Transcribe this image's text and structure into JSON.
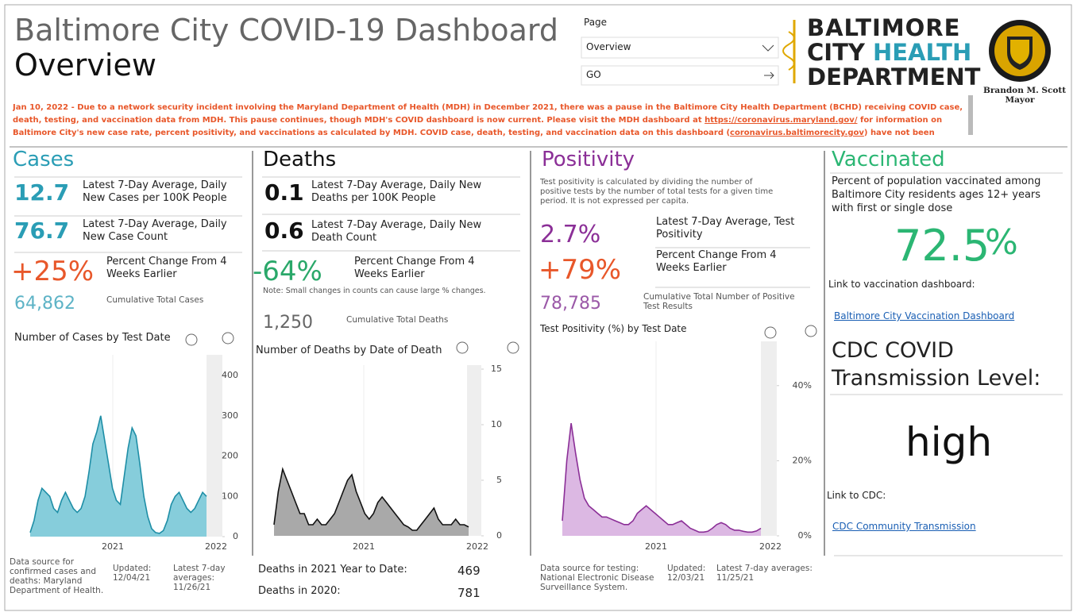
{
  "header": {
    "title": "Baltimore City COVID-19 Dashboard",
    "subtitle": "Overview",
    "page_label": "Page",
    "page_value": "Overview",
    "go": "GO",
    "logo": {
      "line1": "BALTIMORE",
      "line2a": "CITY",
      "line2b": "HEALTH",
      "line3": "DEPARTMENT"
    },
    "mayor": {
      "name": "Brandon M. Scott",
      "role": "Mayor"
    }
  },
  "notice": {
    "text1": "Jan 10, 2022 - Due to a network security incident involving the Maryland Department of Health (MDH) in December 2021, there was a pause in the Baltimore City Health Department (BCHD) receiving COVID case, death, testing, and vaccination data from MDH. This pause continues, though MDH's COVID dashboard is now current. Please visit the MDH dashboard at ",
    "link1": "https://coronavirus.maryland.gov/",
    "text2": " for information on Baltimore City's new case rate, percent positivity, and vaccinations as calculated by MDH. COVID case, death, testing, and vaccination data on this dashboard (",
    "link2": "coronavirus.baltimorecity.gov",
    "text3": ") have not been updated since Friday, December"
  },
  "panels": {
    "cases": {
      "title": "Cases",
      "rate": 12.7,
      "rate_label": "Latest 7-Day Average, Daily New Cases per 100K People",
      "count": 76.7,
      "count_label": "Latest 7-Day Average, Daily New Case Count",
      "change": "+25%",
      "change_label": "Percent Change From 4 Weeks Earlier",
      "total": "64,862",
      "total_label": "Cumulative Total Cases",
      "chart": {
        "type": "area",
        "title": "Number of Cases by Test Date",
        "color": "#1e8ea6",
        "fill": "#86cddb",
        "values": [
          10,
          40,
          90,
          120,
          110,
          100,
          70,
          60,
          90,
          110,
          90,
          70,
          60,
          70,
          100,
          160,
          230,
          260,
          300,
          240,
          180,
          120,
          90,
          80,
          150,
          220,
          270,
          250,
          180,
          100,
          50,
          20,
          10,
          8,
          15,
          40,
          80,
          100,
          110,
          90,
          70,
          60,
          70,
          90,
          110,
          100
        ],
        "ylim": [
          0,
          400
        ],
        "yticks": [
          0,
          100,
          200,
          300,
          400
        ],
        "xtick_labels": [
          "2021",
          "2022"
        ]
      },
      "source": "Data source for confirmed cases and deaths: Maryland Department of Health.",
      "updated_label": "Updated:",
      "updated": "12/04/21",
      "averages_label": "Latest 7-day averages:",
      "averages": "11/26/21"
    },
    "deaths": {
      "title": "Deaths",
      "rate": 0.1,
      "rate_label": "Latest 7-Day Average, Daily New Deaths per 100K People",
      "count": 0.6,
      "count_label": "Latest 7-Day Average, Daily New Death Count",
      "change": "-64%",
      "change_label": "Percent Change From 4 Weeks Earlier",
      "note": "Note: Small changes in counts can cause large % changes.",
      "total": "1,250",
      "total_label": "Cumulative Total Deaths",
      "chart": {
        "type": "area",
        "title": "Number of Deaths by Date of Death",
        "color": "#111111",
        "fill": "#a9a9a9",
        "values": [
          1,
          4,
          6,
          5,
          4,
          3,
          2,
          2,
          1,
          1,
          1.5,
          1,
          1,
          1.5,
          2,
          3,
          4,
          5,
          5.5,
          4,
          3,
          2,
          1.5,
          2,
          3,
          3.5,
          3,
          2.5,
          2,
          1.5,
          1,
          0.8,
          0.5,
          0.5,
          1,
          1.5,
          2,
          2.5,
          1.5,
          1,
          1,
          1,
          1.5,
          1,
          1,
          0.8
        ],
        "ylim": [
          0,
          15
        ],
        "yticks": [
          0,
          5,
          10,
          15
        ],
        "xtick_labels": [
          "2021",
          "2022"
        ]
      },
      "ytd_label": "Deaths in 2021 Year to Date:",
      "ytd": 469,
      "prev_label": "Deaths in 2020:",
      "prev": 781
    },
    "positivity": {
      "title": "Positivity",
      "description": "Test positivity is calculated by dividing the number of positive tests by the number of total tests for a given time period. It is not expressed per capita.",
      "rate": "2.7%",
      "rate_label": "Latest 7-Day Average, Test Positivity",
      "change": "+79%",
      "change_label": "Percent Change From 4 Weeks Earlier",
      "total": "78,785",
      "total_label": "Cumulative Total Number of Positive Test Results",
      "chart": {
        "type": "area",
        "title": "Test Positivity (%) by Test Date",
        "color": "#8b2f97",
        "fill": "#dcb8e3",
        "values": [
          4,
          20,
          30,
          22,
          15,
          10,
          8,
          7,
          6,
          5,
          5,
          4.5,
          4,
          3.5,
          3,
          3,
          4,
          6,
          7,
          8,
          7,
          6,
          5,
          4,
          3,
          3,
          3.5,
          4,
          3,
          2,
          1.5,
          1,
          1,
          1.2,
          2,
          3,
          3.5,
          3,
          2,
          1.5,
          1.5,
          1.2,
          1,
          1,
          1.3,
          2
        ],
        "ylim": [
          0,
          52
        ],
        "yticks": [
          {
            "value": 0,
            "label": "0%"
          },
          {
            "value": 20,
            "label": "20%"
          },
          {
            "value": 40,
            "label": "40%"
          }
        ],
        "xtick_labels": [
          "2021",
          "2022"
        ]
      },
      "source": "Data source for testing: National Electronic Disease Surveillance System.",
      "updated_label": "Updated:",
      "updated": "12/03/21",
      "averages_label": "Latest 7-day averages:",
      "averages": "11/25/21"
    },
    "vaccinated": {
      "title": "Vaccinated",
      "description": "Percent of population vaccinated among Baltimore City residents ages 12+ years with first or single dose",
      "value": 72.5,
      "unit": "%",
      "link_label": "Link to vaccination dashboard:",
      "link": "Baltimore City Vaccination Dashboard",
      "cdc_title": "CDC COVID Transmission Level:",
      "cdc_level": "high",
      "cdc_link_label": "Link to CDC:",
      "cdc_link": "CDC Community Transmission"
    }
  }
}
